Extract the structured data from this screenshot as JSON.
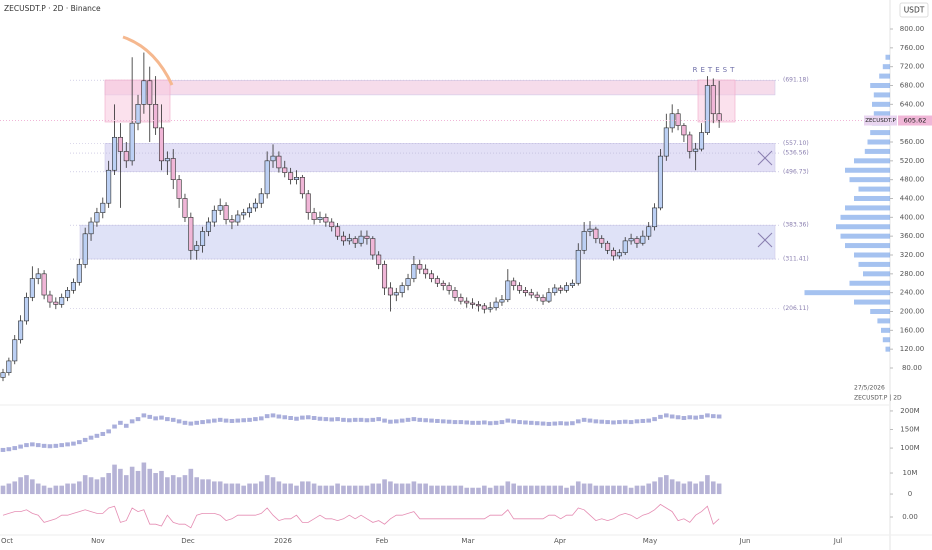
{
  "header": {
    "symbol_line": "ZECUSDT.P · 2D · Binance",
    "currency": "USDT"
  },
  "chart_data": {
    "type": "candlestick",
    "ohlc": [
      [
        60,
        78,
        52,
        70
      ],
      [
        70,
        102,
        64,
        95
      ],
      [
        95,
        150,
        88,
        140
      ],
      [
        140,
        192,
        132,
        180
      ],
      [
        180,
        240,
        172,
        230
      ],
      [
        230,
        296,
        222,
        270
      ],
      [
        270,
        292,
        258,
        280
      ],
      [
        280,
        288,
        226,
        235
      ],
      [
        235,
        244,
        208,
        220
      ],
      [
        220,
        230,
        205,
        215
      ],
      [
        215,
        238,
        208,
        230
      ],
      [
        230,
        252,
        222,
        245
      ],
      [
        245,
        270,
        238,
        262
      ],
      [
        262,
        312,
        255,
        300
      ],
      [
        300,
        378,
        292,
        365
      ],
      [
        365,
        400,
        350,
        390
      ],
      [
        390,
        420,
        380,
        410
      ],
      [
        410,
        442,
        398,
        430
      ],
      [
        430,
        520,
        420,
        500
      ],
      [
        500,
        640,
        490,
        570
      ],
      [
        570,
        600,
        420,
        540
      ],
      [
        540,
        560,
        505,
        520
      ],
      [
        520,
        740,
        510,
        600
      ],
      [
        600,
        660,
        585,
        640
      ],
      [
        640,
        750,
        620,
        690
      ],
      [
        690,
        720,
        560,
        640
      ],
      [
        640,
        700,
        575,
        590
      ],
      [
        590,
        640,
        500,
        520
      ],
      [
        520,
        540,
        490,
        525
      ],
      [
        525,
        545,
        460,
        480
      ],
      [
        480,
        490,
        420,
        440
      ],
      [
        440,
        450,
        390,
        400
      ],
      [
        400,
        410,
        310,
        330
      ],
      [
        330,
        350,
        310,
        340
      ],
      [
        340,
        380,
        325,
        370
      ],
      [
        370,
        400,
        360,
        390
      ],
      [
        390,
        425,
        380,
        415
      ],
      [
        415,
        440,
        405,
        425
      ],
      [
        425,
        432,
        385,
        395
      ],
      [
        395,
        405,
        375,
        390
      ],
      [
        390,
        415,
        382,
        405
      ],
      [
        405,
        418,
        395,
        410
      ],
      [
        410,
        430,
        400,
        420
      ],
      [
        420,
        440,
        412,
        430
      ],
      [
        430,
        462,
        420,
        450
      ],
      [
        450,
        540,
        440,
        520
      ],
      [
        520,
        555,
        505,
        530
      ],
      [
        530,
        540,
        495,
        505
      ],
      [
        505,
        520,
        485,
        495
      ],
      [
        495,
        505,
        470,
        480
      ],
      [
        480,
        500,
        470,
        485
      ],
      [
        485,
        490,
        440,
        450
      ],
      [
        450,
        458,
        395,
        410
      ],
      [
        410,
        420,
        385,
        395
      ],
      [
        395,
        412,
        388,
        400
      ],
      [
        400,
        408,
        380,
        390
      ],
      [
        390,
        398,
        370,
        380
      ],
      [
        380,
        388,
        352,
        360
      ],
      [
        360,
        370,
        340,
        350
      ],
      [
        350,
        365,
        342,
        355
      ],
      [
        355,
        360,
        335,
        345
      ],
      [
        345,
        372,
        338,
        360
      ],
      [
        360,
        372,
        342,
        355
      ],
      [
        355,
        360,
        310,
        320
      ],
      [
        320,
        328,
        290,
        300
      ],
      [
        300,
        308,
        235,
        250
      ],
      [
        250,
        262,
        200,
        235
      ],
      [
        235,
        250,
        222,
        240
      ],
      [
        240,
        262,
        230,
        255
      ],
      [
        255,
        280,
        245,
        270
      ],
      [
        270,
        318,
        262,
        300
      ],
      [
        300,
        310,
        280,
        290
      ],
      [
        290,
        300,
        270,
        280
      ],
      [
        280,
        288,
        262,
        270
      ],
      [
        270,
        276,
        252,
        260
      ],
      [
        260,
        266,
        245,
        255
      ],
      [
        255,
        262,
        236,
        245
      ],
      [
        245,
        252,
        222,
        230
      ],
      [
        230,
        238,
        215,
        222
      ],
      [
        222,
        230,
        208,
        218
      ],
      [
        218,
        228,
        206,
        215
      ],
      [
        215,
        222,
        200,
        212
      ],
      [
        212,
        218,
        196,
        205
      ],
      [
        205,
        220,
        198,
        208
      ],
      [
        208,
        230,
        202,
        220
      ],
      [
        220,
        235,
        212,
        225
      ],
      [
        225,
        290,
        220,
        265
      ],
      [
        265,
        272,
        245,
        255
      ],
      [
        255,
        262,
        238,
        245
      ],
      [
        245,
        252,
        232,
        240
      ],
      [
        240,
        248,
        228,
        235
      ],
      [
        235,
        242,
        222,
        230
      ],
      [
        230,
        236,
        214,
        222
      ],
      [
        222,
        250,
        218,
        240
      ],
      [
        240,
        258,
        234,
        250
      ],
      [
        250,
        256,
        238,
        245
      ],
      [
        245,
        262,
        240,
        255
      ],
      [
        255,
        268,
        250,
        260
      ],
      [
        260,
        345,
        255,
        330
      ],
      [
        330,
        390,
        322,
        370
      ],
      [
        370,
        392,
        360,
        375
      ],
      [
        375,
        380,
        345,
        355
      ],
      [
        355,
        362,
        335,
        345
      ],
      [
        345,
        350,
        322,
        330
      ],
      [
        330,
        336,
        308,
        318
      ],
      [
        318,
        332,
        312,
        325
      ],
      [
        325,
        358,
        320,
        350
      ],
      [
        350,
        365,
        342,
        355
      ],
      [
        355,
        360,
        335,
        345
      ],
      [
        345,
        372,
        340,
        360
      ],
      [
        360,
        390,
        352,
        380
      ],
      [
        380,
        430,
        372,
        420
      ],
      [
        420,
        545,
        415,
        530
      ],
      [
        530,
        620,
        520,
        590
      ],
      [
        590,
        640,
        580,
        620
      ],
      [
        620,
        630,
        585,
        595
      ],
      [
        595,
        600,
        560,
        575
      ],
      [
        575,
        582,
        525,
        540
      ],
      [
        540,
        558,
        500,
        545
      ],
      [
        545,
        600,
        540,
        580
      ],
      [
        580,
        700,
        575,
        680
      ],
      [
        680,
        695,
        600,
        620
      ],
      [
        620,
        690,
        590,
        605.62
      ]
    ],
    "up_color": "#bcd0f4",
    "down_color": "#f0b6d7",
    "wick_color": "#2b2b2b",
    "ylim": [
      1.4,
      861.6
    ],
    "yticks": [
      {
        "value": 80,
        "label": "80.00"
      },
      {
        "value": 120,
        "label": "120.00"
      },
      {
        "value": 160,
        "label": "160.00"
      },
      {
        "value": 200,
        "label": "200.00"
      },
      {
        "value": 240,
        "label": "240.00"
      },
      {
        "value": 280,
        "label": "280.00"
      },
      {
        "value": 320,
        "label": "320.00"
      },
      {
        "value": 360,
        "label": "360.00"
      },
      {
        "value": 400,
        "label": "400.00"
      },
      {
        "value": 440,
        "label": "440.00"
      },
      {
        "value": 480,
        "label": "480.00"
      },
      {
        "value": 520,
        "label": "520.00"
      },
      {
        "value": 560,
        "label": "560.00"
      },
      {
        "value": 600,
        "label": "600.00"
      },
      {
        "value": 640,
        "label": "640.00"
      },
      {
        "value": 680,
        "label": "680.00"
      },
      {
        "value": 720,
        "label": "720.00"
      },
      {
        "value": 760,
        "label": "760.00"
      },
      {
        "value": 800,
        "label": "800.00"
      }
    ],
    "xticks": [
      "Oct",
      "Nov",
      "Dec",
      "2026",
      "Feb",
      "Mar",
      "Apr",
      "May",
      "Jun",
      "Jul"
    ],
    "levels": [
      {
        "value": 691.18,
        "label": "(691.18)"
      },
      {
        "value": 557.1,
        "label": "(557.10)"
      },
      {
        "value": 536.56,
        "label": "(536.56)"
      },
      {
        "value": 496.73,
        "label": "(496.73)"
      },
      {
        "value": 383.36,
        "label": "(383.36)"
      },
      {
        "value": 311.41,
        "label": "(311.41)"
      },
      {
        "value": 206.11,
        "label": "(206.11)"
      }
    ],
    "zones": [
      {
        "from": 660,
        "to": 691.18,
        "color": "#f4d6e8"
      },
      {
        "from": 496.73,
        "to": 557.1,
        "color": "#dedbf4"
      },
      {
        "from": 311.41,
        "to": 383.36,
        "color": "#d9ddf6"
      }
    ],
    "annotation": "RETEST",
    "last_price": {
      "value": 605.62,
      "symbol": "ZECUSDT.P",
      "color": "#f0b6d7"
    },
    "legend_date": "27/5/2026",
    "legend_symbol": "ZECUSDT.P | 2D",
    "volume_profile": {
      "color": "#5b8fe3",
      "prices": [
        120,
        140,
        160,
        180,
        200,
        220,
        240,
        260,
        280,
        300,
        320,
        340,
        360,
        380,
        400,
        420,
        440,
        460,
        480,
        500,
        520,
        540,
        560,
        580,
        600,
        620,
        640,
        660,
        680,
        700,
        720,
        740
      ],
      "values": [
        5,
        8,
        10,
        14,
        22,
        40,
        95,
        45,
        30,
        35,
        40,
        50,
        55,
        60,
        55,
        50,
        40,
        35,
        45,
        50,
        40,
        28,
        25,
        22,
        20,
        18,
        20,
        18,
        22,
        12,
        8,
        5
      ]
    },
    "panes": [
      {
        "type": "blocks",
        "color": "#a9aedb",
        "ylim": [
          76,
          216
        ],
        "yticks": [
          {
            "value": 200,
            "label": "200M"
          },
          {
            "value": 150,
            "label": "150M"
          },
          {
            "value": 100,
            "label": "100M"
          }
        ],
        "values": [
          95,
          97,
          100,
          104,
          108,
          110,
          108,
          106,
          105,
          106,
          108,
          110,
          112,
          116,
          122,
          128,
          133,
          138,
          145,
          158,
          168,
          160,
          172,
          178,
          188,
          184,
          180,
          182,
          178,
          176,
          172,
          168,
          166,
          168,
          170,
          172,
          174,
          176,
          174,
          173,
          174,
          175,
          176,
          178,
          180,
          186,
          188,
          185,
          183,
          181,
          179,
          182,
          183,
          181,
          179,
          178,
          177,
          178,
          176,
          175,
          176,
          176,
          175,
          176,
          178,
          174,
          171,
          172,
          174,
          176,
          178,
          176,
          175,
          174,
          173,
          172,
          171,
          170,
          170,
          169,
          168,
          168,
          169,
          167,
          168,
          170,
          174,
          172,
          170,
          169,
          168,
          167,
          166,
          165,
          166,
          167,
          166,
          167,
          172,
          176,
          174,
          172,
          171,
          170,
          169,
          170,
          171,
          170,
          172,
          173,
          174,
          178,
          184,
          188,
          185,
          183,
          181,
          183,
          182,
          184,
          188,
          186,
          185
        ]
      },
      {
        "type": "bar",
        "color": "#b6b3d6",
        "ylim": [
          -1.4,
          16.2
        ],
        "yticks": [
          {
            "value": 10,
            "label": "10M"
          },
          0
        ],
        "values": [
          4,
          5,
          6,
          8,
          9,
          7,
          5,
          4,
          3,
          4,
          4,
          5,
          5,
          6,
          9,
          8,
          7,
          8,
          10,
          14,
          12,
          9,
          13,
          11,
          15,
          12,
          10,
          11,
          8,
          9,
          8,
          9,
          12,
          8,
          7,
          7,
          6,
          6,
          5,
          5,
          5,
          4,
          5,
          5,
          6,
          9,
          8,
          6,
          5,
          5,
          4,
          6,
          6,
          5,
          4,
          4,
          4,
          5,
          4,
          4,
          4,
          4,
          4,
          5,
          5,
          7,
          6,
          5,
          5,
          5,
          6,
          5,
          5,
          4,
          4,
          4,
          4,
          4,
          4,
          3,
          3,
          3,
          4,
          3,
          4,
          4,
          6,
          5,
          4,
          4,
          4,
          4,
          4,
          4,
          4,
          4,
          3,
          4,
          6,
          5,
          5,
          4,
          4,
          4,
          4,
          4,
          4,
          3,
          4,
          4,
          5,
          6,
          8,
          9,
          7,
          6,
          5,
          6,
          5,
          6,
          9,
          6,
          5
        ]
      },
      {
        "type": "line",
        "color": "#e58db3",
        "ylim": [
          -0.1,
          0.1
        ],
        "yticks": [
          {
            "value": 0,
            "label": "0.00"
          }
        ],
        "values": [
          0.01,
          0.02,
          0.03,
          0.03,
          0.04,
          0.02,
          0.01,
          -0.03,
          -0.02,
          -0.01,
          0.01,
          0.01,
          0.02,
          0.03,
          0.04,
          0.03,
          0.02,
          0.02,
          0.05,
          0.06,
          -0.03,
          -0.02,
          0.05,
          0.03,
          0.04,
          -0.04,
          -0.04,
          -0.05,
          0.01,
          -0.03,
          -0.04,
          -0.04,
          -0.06,
          0.01,
          0.02,
          0.02,
          0.02,
          0.01,
          -0.02,
          -0.01,
          0.01,
          0.01,
          0.01,
          0.01,
          0.02,
          0.05,
          0.01,
          -0.02,
          -0.01,
          -0.01,
          0.01,
          -0.03,
          -0.03,
          -0.01,
          0.01,
          -0.01,
          -0.01,
          -0.02,
          -0.01,
          0.01,
          -0.01,
          0.01,
          -0.01,
          -0.03,
          -0.02,
          -0.04,
          -0.01,
          0.01,
          0.01,
          0.02,
          0.03,
          -0.01,
          -0.01,
          -0.01,
          -0.01,
          -0.01,
          -0.01,
          -0.01,
          -0.01,
          -0.01,
          -0.01,
          -0.01,
          -0.01,
          0.01,
          0.01,
          0.01,
          0.04,
          -0.01,
          -0.01,
          -0.01,
          -0.01,
          -0.01,
          -0.01,
          0.01,
          0.01,
          -0.01,
          0.01,
          0.01,
          0.05,
          0.04,
          0.01,
          -0.02,
          -0.01,
          -0.02,
          -0.01,
          0.01,
          0.02,
          0.01,
          -0.01,
          0.01,
          0.02,
          0.04,
          0.07,
          0.05,
          0.03,
          -0.02,
          -0.01,
          -0.03,
          0.01,
          0.03,
          0.06,
          -0.04,
          -0.01
        ]
      }
    ]
  }
}
